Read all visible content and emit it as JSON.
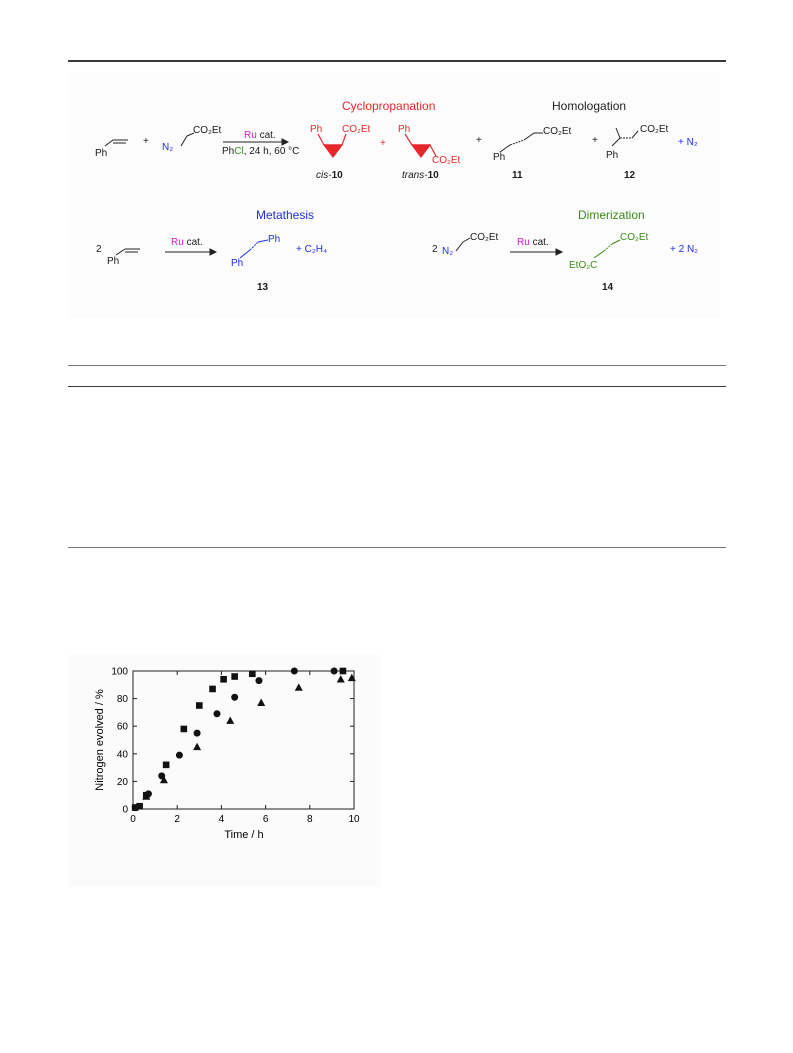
{
  "scheme": {
    "labels": {
      "cyclopropanation": "Cyclopropanation",
      "homologation": "Homologation",
      "metathesis": "Metathesis",
      "dimerization": "Dimerization"
    },
    "reagents": {
      "ph": "Ph",
      "plus": "+",
      "co2et": "CO₂Et",
      "n2": "N₂",
      "ru_cat": "Ru",
      "cat": "cat.",
      "conditions_pre": "Ph",
      "conditions_cl": "Cl",
      "conditions_post": ", 24 h, 60 °C",
      "c2h4": "+ C₂H₄",
      "two": "2",
      "eto2c": "EtO₂C",
      "plus_n2": "+ N₂",
      "plus_2n2": "+ 2 N₂"
    },
    "compounds": {
      "cis_prefix": "cis-",
      "cis_num": "10",
      "trans_prefix": "trans-",
      "trans_num": "10",
      "c11": "11",
      "c12": "12",
      "c13": "13",
      "c14": "14"
    },
    "colors": {
      "red": "#e8262b",
      "blue": "#1f2fe0",
      "green": "#3a8c17",
      "magenta": "#d21ec8"
    }
  },
  "chart_data": {
    "type": "scatter",
    "xlabel": "Time / h",
    "ylabel": "Nitrogen evolved / %",
    "xlim": [
      0,
      10
    ],
    "ylim": [
      0,
      100
    ],
    "xticks": [
      "0",
      "2",
      "4",
      "6",
      "8",
      "10"
    ],
    "yticks": [
      "0",
      "20",
      "40",
      "60",
      "80",
      "100"
    ],
    "series": [
      {
        "marker": "square",
        "x": [
          0.1,
          0.3,
          0.6,
          1.5,
          2.3,
          3.0,
          3.6,
          4.1,
          4.6,
          5.4,
          9.5
        ],
        "y": [
          1,
          2,
          10,
          32,
          58,
          75,
          87,
          94,
          96,
          98,
          100
        ]
      },
      {
        "marker": "circle",
        "x": [
          0.1,
          0.7,
          1.3,
          2.1,
          2.9,
          3.8,
          4.6,
          5.7,
          7.3,
          9.1
        ],
        "y": [
          1,
          11,
          24,
          39,
          55,
          69,
          81,
          93,
          100,
          100
        ]
      },
      {
        "marker": "triangle",
        "x": [
          0.6,
          1.4,
          2.9,
          4.4,
          5.8,
          7.5,
          9.4,
          9.9
        ],
        "y": [
          9,
          21,
          45,
          64,
          77,
          88,
          94,
          95
        ]
      }
    ]
  }
}
